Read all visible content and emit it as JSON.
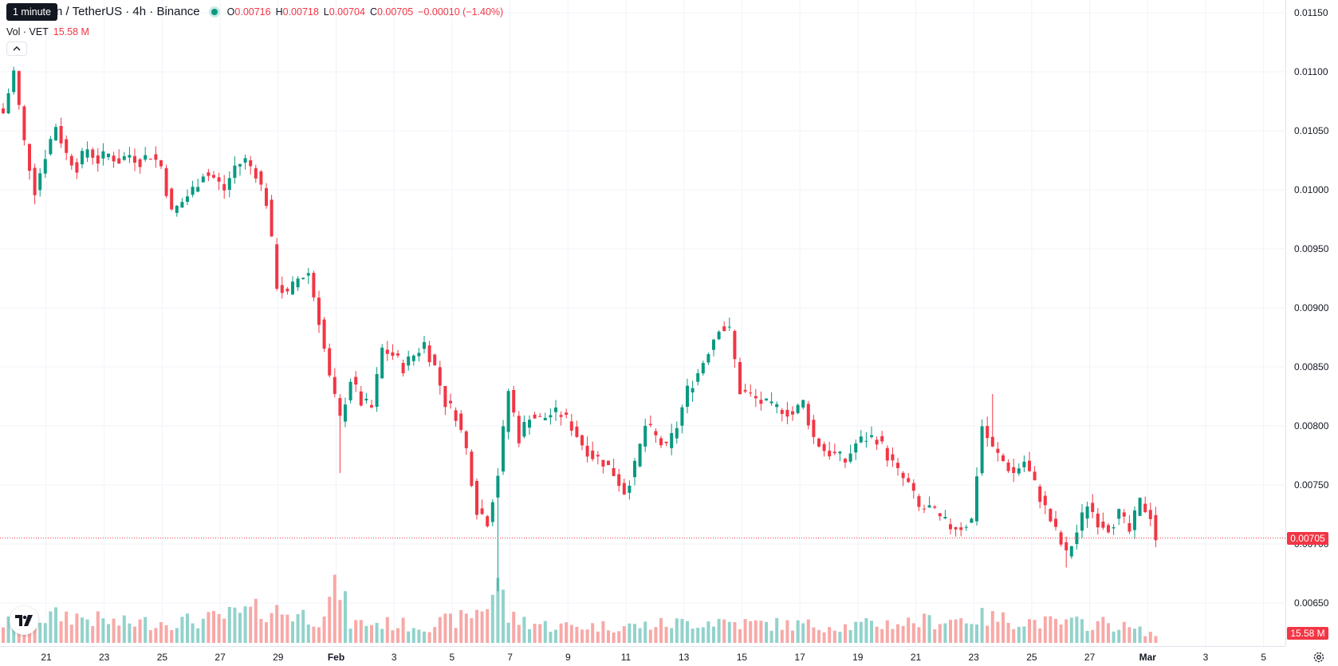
{
  "legend": {
    "symbol": "n / TetherUS · 4h · Binance",
    "open_label": "O",
    "open": "0.00716",
    "high_label": "H",
    "high": "0.00718",
    "low_label": "L",
    "low": "0.00704",
    "close_label": "C",
    "close": "0.00705",
    "change": "−0.00010 (−1.40%)"
  },
  "tooltip": "1 minute",
  "volume_legend": {
    "label": "Vol · VET",
    "value": "15.58 M"
  },
  "last_price_tag": "0.00705",
  "volume_tag": "15.58 M",
  "colors": {
    "up": "#089981",
    "down": "#f23645",
    "up_volume": "#92d2cc",
    "down_volume": "#f7a9a7",
    "grid": "#f0f3fa"
  },
  "icons": {
    "collapse": "chevron-up-icon",
    "logo": "tradingview-logo-icon",
    "settings": "gear-icon"
  },
  "price_axis": [
    "0.01150",
    "0.01100",
    "0.01050",
    "0.01000",
    "0.00950",
    "0.00900",
    "0.00850",
    "0.00800",
    "0.00750",
    "0.00700",
    "0.00650"
  ],
  "time_axis": [
    {
      "label": "21"
    },
    {
      "label": "23"
    },
    {
      "label": "25"
    },
    {
      "label": "27"
    },
    {
      "label": "29"
    },
    {
      "label": "Feb",
      "bold": true
    },
    {
      "label": "3"
    },
    {
      "label": "5"
    },
    {
      "label": "7"
    },
    {
      "label": "9"
    },
    {
      "label": "11"
    },
    {
      "label": "13"
    },
    {
      "label": "15"
    },
    {
      "label": "17"
    },
    {
      "label": "19"
    },
    {
      "label": "21"
    },
    {
      "label": "23"
    },
    {
      "label": "25"
    },
    {
      "label": "27"
    },
    {
      "label": "Mar",
      "bold": true
    },
    {
      "label": "3"
    },
    {
      "label": "5"
    }
  ],
  "chart_data": {
    "type": "candlestick",
    "interval": "4h",
    "ylim": [
      0.0062,
      0.0116
    ],
    "last_price": 0.00705,
    "anchors": [
      [
        0,
        0.01065
      ],
      [
        2,
        0.011
      ],
      [
        4,
        0.0104
      ],
      [
        6,
        0.01
      ],
      [
        8,
        0.0103
      ],
      [
        10,
        0.01055
      ],
      [
        12,
        0.0103
      ],
      [
        14,
        0.0102
      ],
      [
        16,
        0.01035
      ],
      [
        18,
        0.01025
      ],
      [
        20,
        0.0103
      ],
      [
        22,
        0.01025
      ],
      [
        24,
        0.0103
      ],
      [
        26,
        0.01025
      ],
      [
        28,
        0.0103
      ],
      [
        30,
        0.0102
      ],
      [
        32,
        0.0098
      ],
      [
        34,
        0.0099
      ],
      [
        36,
        0.01
      ],
      [
        38,
        0.01015
      ],
      [
        40,
        0.0101
      ],
      [
        42,
        0.01
      ],
      [
        44,
        0.0102
      ],
      [
        46,
        0.01025
      ],
      [
        48,
        0.01015
      ],
      [
        50,
        0.0099
      ],
      [
        52,
        0.0092
      ],
      [
        54,
        0.0091
      ],
      [
        56,
        0.00925
      ],
      [
        58,
        0.0093
      ],
      [
        60,
        0.0089
      ],
      [
        62,
        0.0084
      ],
      [
        64,
        0.00805
      ],
      [
        66,
        0.0084
      ],
      [
        68,
        0.0082
      ],
      [
        70,
        0.00815
      ],
      [
        72,
        0.00865
      ],
      [
        74,
        0.0086
      ],
      [
        76,
        0.0085
      ],
      [
        78,
        0.0086
      ],
      [
        80,
        0.0087
      ],
      [
        82,
        0.0085
      ],
      [
        84,
        0.0082
      ],
      [
        86,
        0.0081
      ],
      [
        88,
        0.0078
      ],
      [
        90,
        0.0073
      ],
      [
        92,
        0.0072
      ],
      [
        94,
        0.0076
      ],
      [
        96,
        0.0083
      ],
      [
        98,
        0.0079
      ],
      [
        100,
        0.0081
      ],
      [
        102,
        0.00805
      ],
      [
        104,
        0.0081
      ],
      [
        106,
        0.0081
      ],
      [
        108,
        0.008
      ],
      [
        110,
        0.00785
      ],
      [
        112,
        0.00775
      ],
      [
        114,
        0.0077
      ],
      [
        116,
        0.0076
      ],
      [
        118,
        0.00745
      ],
      [
        120,
        0.00765
      ],
      [
        122,
        0.008
      ],
      [
        124,
        0.0079
      ],
      [
        126,
        0.0078
      ],
      [
        128,
        0.008
      ],
      [
        130,
        0.0083
      ],
      [
        132,
        0.00845
      ],
      [
        134,
        0.00865
      ],
      [
        136,
        0.00885
      ],
      [
        138,
        0.0088
      ],
      [
        140,
        0.0083
      ],
      [
        142,
        0.00825
      ],
      [
        144,
        0.0082
      ],
      [
        146,
        0.00815
      ],
      [
        148,
        0.00815
      ],
      [
        150,
        0.0081
      ],
      [
        152,
        0.0082
      ],
      [
        154,
        0.0079
      ],
      [
        156,
        0.0078
      ],
      [
        158,
        0.00775
      ],
      [
        160,
        0.0077
      ],
      [
        162,
        0.00785
      ],
      [
        164,
        0.0079
      ],
      [
        166,
        0.0079
      ],
      [
        168,
        0.00775
      ],
      [
        170,
        0.0076
      ],
      [
        172,
        0.0075
      ],
      [
        174,
        0.0073
      ],
      [
        176,
        0.0073
      ],
      [
        178,
        0.0072
      ],
      [
        180,
        0.00715
      ],
      [
        182,
        0.00715
      ],
      [
        184,
        0.0072
      ],
      [
        186,
        0.008
      ],
      [
        188,
        0.0078
      ],
      [
        190,
        0.0077
      ],
      [
        192,
        0.0076
      ],
      [
        194,
        0.0077
      ],
      [
        196,
        0.0075
      ],
      [
        198,
        0.0073
      ],
      [
        200,
        0.0071
      ],
      [
        202,
        0.0069
      ],
      [
        204,
        0.0071
      ],
      [
        206,
        0.00735
      ],
      [
        208,
        0.0072
      ],
      [
        210,
        0.00715
      ],
      [
        212,
        0.00725
      ],
      [
        214,
        0.0071
      ],
      [
        216,
        0.00735
      ],
      [
        218,
        0.00725
      ],
      [
        219,
        0.00705
      ]
    ],
    "spikes": [
      {
        "index": 64,
        "low": 0.0076
      },
      {
        "index": 93,
        "low": 0.00715
      },
      {
        "index": 94,
        "low": 0.0066
      },
      {
        "index": 188,
        "high": 0.00827
      },
      {
        "index": 202,
        "low": 0.0068
      }
    ],
    "volume_profile": [
      [
        0,
        0.35
      ],
      [
        12,
        0.5
      ],
      [
        22,
        0.35
      ],
      [
        38,
        0.4
      ],
      [
        50,
        0.6
      ],
      [
        60,
        0.45
      ],
      [
        63,
        0.9
      ],
      [
        64,
        1.0
      ],
      [
        66,
        0.35
      ],
      [
        72,
        0.35
      ],
      [
        80,
        0.3
      ],
      [
        88,
        0.45
      ],
      [
        92,
        0.7
      ],
      [
        94,
        1.15
      ],
      [
        96,
        0.45
      ],
      [
        104,
        0.3
      ],
      [
        120,
        0.3
      ],
      [
        136,
        0.4
      ],
      [
        140,
        0.35
      ],
      [
        160,
        0.3
      ],
      [
        186,
        0.45
      ],
      [
        200,
        0.35
      ],
      [
        210,
        0.35
      ],
      [
        219,
        0.15
      ]
    ]
  }
}
